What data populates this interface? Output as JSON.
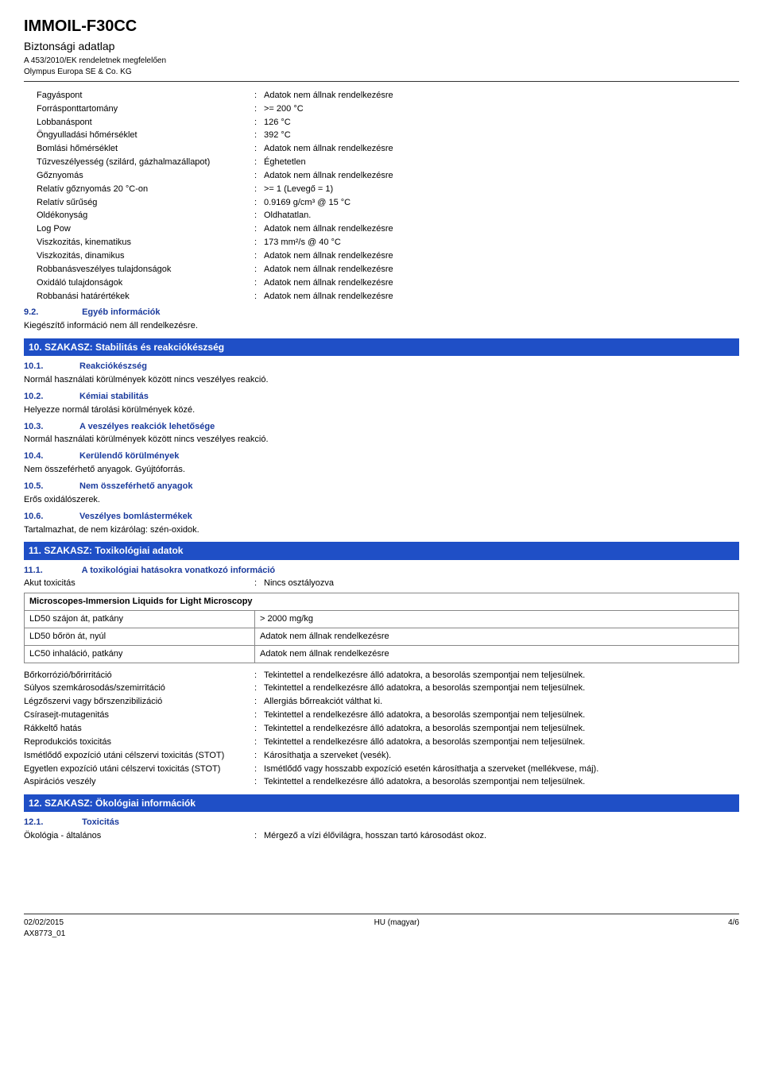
{
  "header": {
    "title": "IMMOIL-F30CC",
    "subtitle": "Biztonsági adatlap",
    "regulation": "A 453/2010/EK rendeletnek megfelelően",
    "company": "Olympus Europa SE & Co. KG"
  },
  "properties": [
    {
      "label": "Fagyáspont",
      "value": "Adatok nem állnak rendelkezésre"
    },
    {
      "label": "Forrásponttartomány",
      "value": ">= 200 °C"
    },
    {
      "label": "Lobbanáspont",
      "value": "126 °C"
    },
    {
      "label": "Öngyulladási hőmérséklet",
      "value": "392 °C"
    },
    {
      "label": "Bomlási hőmérséklet",
      "value": "Adatok nem állnak rendelkezésre"
    },
    {
      "label": "Tűzveszélyesség (szilárd, gázhalmazállapot)",
      "value": "Éghetetlen"
    },
    {
      "label": "Gőznyomás",
      "value": "Adatok nem állnak rendelkezésre"
    },
    {
      "label": "Relatív gőznyomás 20 °C-on",
      "value": ">= 1 (Levegő = 1)"
    },
    {
      "label": "Relatív sűrűség",
      "value": "0.9169 g/cm³ @ 15 °C"
    },
    {
      "label": "Oldékonyság",
      "value": "Oldhatatlan."
    },
    {
      "label": "Log Pow",
      "value": "Adatok nem állnak rendelkezésre"
    },
    {
      "label": "Viszkozitás, kinematikus",
      "value": "173 mm²/s @ 40 °C"
    },
    {
      "label": "Viszkozitás, dinamikus",
      "value": "Adatok nem állnak rendelkezésre"
    },
    {
      "label": "Robbanásveszélyes tulajdonságok",
      "value": "Adatok nem állnak rendelkezésre"
    },
    {
      "label": "Oxidáló tulajdonságok",
      "value": "Adatok nem állnak rendelkezésre"
    },
    {
      "label": "Robbanási határértékek",
      "value": "Adatok nem állnak rendelkezésre"
    }
  ],
  "s92": {
    "num": "9.2.",
    "title": "Egyéb információk",
    "body": "Kiegészítő információ nem áll rendelkezésre."
  },
  "s10": {
    "bar": "10. SZAKASZ: Stabilitás és reakciókészség",
    "items": [
      {
        "num": "10.1.",
        "title": "Reakciókészség",
        "body": "Normál használati körülmények között nincs veszélyes reakció."
      },
      {
        "num": "10.2.",
        "title": "Kémiai stabilitás",
        "body": "Helyezze normál tárolási körülmények közé."
      },
      {
        "num": "10.3.",
        "title": "A veszélyes reakciók lehetősége",
        "body": "Normál használati körülmények között nincs veszélyes reakció."
      },
      {
        "num": "10.4.",
        "title": "Kerülendő körülmények",
        "body": "Nem összeférhető anyagok. Gyújtóforrás."
      },
      {
        "num": "10.5.",
        "title": "Nem összeférhető anyagok",
        "body": "Erős oxidálószerek."
      },
      {
        "num": "10.6.",
        "title": "Veszélyes bomlástermékek",
        "body": "Tartalmazhat, de nem kizárólag: szén-oxidok."
      }
    ]
  },
  "s11": {
    "bar": "11. SZAKASZ: Toxikológiai adatok",
    "sub": {
      "num": "11.1.",
      "title": "A toxikológiai hatásokra vonatkozó információ"
    },
    "acute": {
      "label": "Akut toxicitás",
      "value": "Nincs osztályozva"
    },
    "table": {
      "title": "Microscopes-Immersion Liquids for Light Microscopy",
      "rows": [
        {
          "label": "LD50 szájon át, patkány",
          "value": "> 2000 mg/kg"
        },
        {
          "label": "LD50 bőrön át, nyúl",
          "value": "Adatok nem állnak rendelkezésre"
        },
        {
          "label": "LC50 inhaláció, patkány",
          "value": "Adatok nem állnak rendelkezésre"
        }
      ]
    },
    "effects": [
      {
        "label": "Bőrkorrózió/bőrirritáció",
        "value": "Tekintettel a rendelkezésre álló adatokra, a besorolás szempontjai nem teljesülnek."
      },
      {
        "label": "Súlyos szemkárosodás/szemirritáció",
        "value": "Tekintettel a rendelkezésre álló adatokra, a besorolás szempontjai nem teljesülnek."
      },
      {
        "label": "Légzőszervi vagy bőrszenzibilizáció",
        "value": "Allergiás bőrreakciót válthat ki."
      },
      {
        "label": "Csírasejt-mutagenitás",
        "value": "Tekintettel a rendelkezésre álló adatokra, a besorolás szempontjai nem teljesülnek."
      },
      {
        "label": "Rákkeltő hatás",
        "value": "Tekintettel a rendelkezésre álló adatokra, a besorolás szempontjai nem teljesülnek."
      },
      {
        "label": "Reprodukciós toxicitás",
        "value": "Tekintettel a rendelkezésre álló adatokra, a besorolás szempontjai nem teljesülnek."
      },
      {
        "label": "Ismétlődő expozíció utáni célszervi toxicitás (STOT)",
        "value": "Károsíthatja a szerveket (vesék)."
      },
      {
        "label": "Egyetlen expozíció utáni célszervi toxicitás (STOT)",
        "value": "Ismétlődő vagy hosszabb expozíció esetén károsíthatja a szerveket (mellékvese, máj)."
      },
      {
        "label": "Aspirációs veszély",
        "value": "Tekintettel a rendelkezésre álló adatokra, a besorolás szempontjai nem teljesülnek."
      }
    ]
  },
  "s12": {
    "bar": "12. SZAKASZ: Ökológiai információk",
    "sub": {
      "num": "12.1.",
      "title": "Toxicitás"
    },
    "row": {
      "label": "Ökológia - általános",
      "value": "Mérgező a vízi élővilágra, hosszan tartó károsodást okoz."
    }
  },
  "footer": {
    "date": "02/02/2015",
    "code": "AX8773_01",
    "center": "HU (magyar)",
    "page": "4/6"
  },
  "colors": {
    "section_bar_bg": "#1f4fc6",
    "section_bar_fg": "#ffffff",
    "sub_heading": "#1a3a9c",
    "border": "#888888",
    "table_header_bg": "#e8e8e8"
  }
}
